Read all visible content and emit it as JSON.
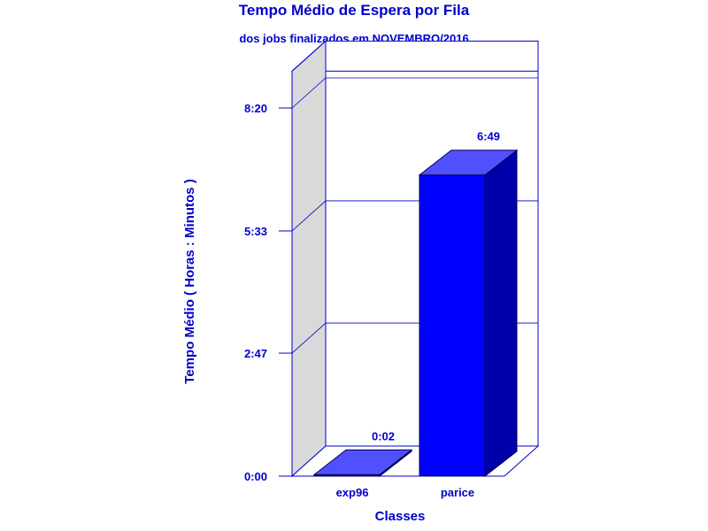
{
  "chart_data": {
    "type": "bar",
    "title": "Tempo Médio de Espera por Fila",
    "subtitle": "dos jobs finalizados em NOVEMBRO/2016",
    "xlabel": "Classes",
    "ylabel": "Tempo Médio ( Horas : Minutos )",
    "categories": [
      "exp96",
      "parice"
    ],
    "values": [
      2,
      409
    ],
    "value_labels": [
      "0:02",
      "6:49"
    ],
    "value_unit": "minutes",
    "yticks": [
      0,
      167,
      333,
      500
    ],
    "ytick_labels": [
      "0:00",
      "2:47",
      "5:33",
      "8:20"
    ],
    "ylim": [
      0,
      550
    ],
    "grid": true,
    "three_d": true,
    "colors": {
      "text": "#0000cc",
      "bar_front": "#0000ff",
      "bar_top": "#5050ff",
      "bar_side": "#0000aa",
      "left_wall": "#d9d9d9",
      "frame": "#0000cc"
    }
  }
}
